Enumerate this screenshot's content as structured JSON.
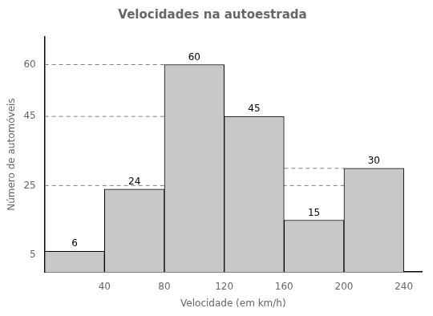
{
  "chart_data": {
    "type": "histogram",
    "title": "Velocidades na autoestrada",
    "x_label": "Velocidade (em km/h)",
    "y_label": "Número de automóveis",
    "bins": [
      0,
      40,
      80,
      120,
      160,
      200,
      240
    ],
    "values": [
      6,
      24,
      60,
      45,
      15,
      30
    ],
    "color": "#c8c8c8",
    "data_labels": true,
    "dashed_lines": [
      {
        "y": 60,
        "x_start": 0,
        "x_end": 80
      },
      {
        "y": 45,
        "x_start": 0,
        "x_end": 80
      },
      {
        "y": 25,
        "x_start": 0,
        "x_end": 200
      },
      {
        "y": 5,
        "x_start": 0,
        "x_end": 40
      },
      {
        "y": 30,
        "x_start": 160,
        "x_end": 200
      }
    ],
    "xlim": [
      0,
      252
    ],
    "xticks": [
      40,
      80,
      120,
      160,
      200,
      240
    ],
    "ylim": [
      0,
      68
    ],
    "yticks": [
      5,
      25,
      45,
      60
    ],
    "grid": false
  }
}
